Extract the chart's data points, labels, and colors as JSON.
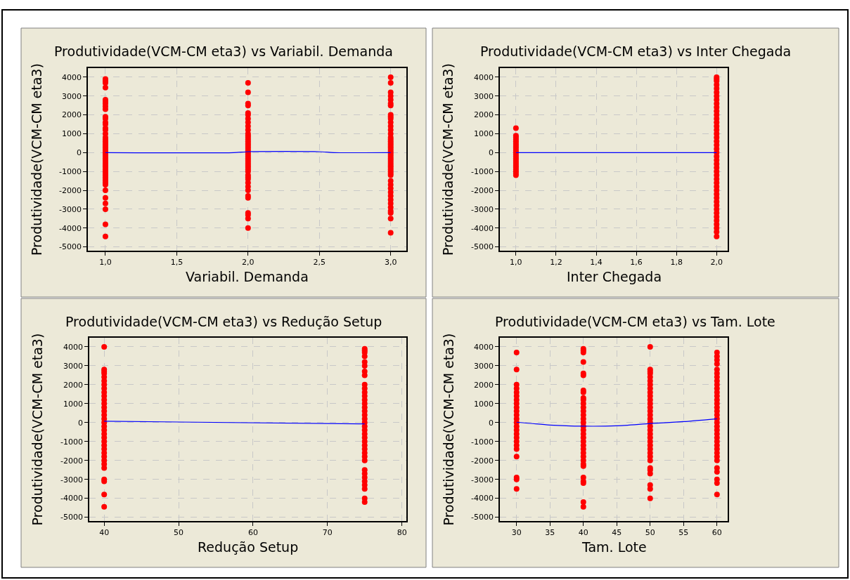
{
  "chart_data": [
    {
      "type": "scatter",
      "title": "Produtividade(VCM-CM eta3) vs Variabil. Demanda",
      "xlabel": "Variabil. Demanda",
      "ylabel": "Produtividade(VCM-CM eta3)",
      "grid": true,
      "xlim": [
        0.877,
        3.11
      ],
      "xticks": [
        {
          "value": 1.0,
          "label": "1,0"
        },
        {
          "value": 1.5,
          "label": "1,5"
        },
        {
          "value": 2.0,
          "label": "2,0"
        },
        {
          "value": 2.5,
          "label": "2,5"
        },
        {
          "value": 3.0,
          "label": "3,0"
        }
      ],
      "ylim": [
        -5200,
        4480
      ],
      "yticks": [
        -5000,
        -4000,
        -3000,
        -2000,
        -1000,
        0,
        1000,
        2000,
        3000,
        4000
      ],
      "series": [
        {
          "marker": "circle",
          "color": "#ff0000",
          "x": [
            1,
            1,
            1,
            1,
            1,
            1,
            1,
            1,
            1,
            1,
            1,
            1,
            1,
            1,
            1,
            1,
            1,
            1,
            1,
            1,
            1,
            1,
            1,
            1,
            1,
            1,
            1,
            1,
            1,
            1,
            1,
            1,
            1,
            1,
            1,
            1,
            1,
            1,
            1,
            1,
            1,
            1,
            1,
            1,
            1,
            1,
            1,
            1,
            2,
            2,
            2,
            2,
            2,
            2,
            2,
            2,
            2,
            2,
            2,
            2,
            2,
            2,
            2,
            2,
            2,
            2,
            2,
            2,
            2,
            2,
            2,
            2,
            2,
            2,
            2,
            2,
            2,
            2,
            2,
            2,
            2,
            2,
            2,
            2,
            2,
            2,
            2,
            2,
            2,
            2,
            2,
            3,
            3,
            3,
            3,
            3,
            3,
            3,
            3,
            3,
            3,
            3,
            3,
            3,
            3,
            3,
            3,
            3,
            3,
            3,
            3,
            3,
            3,
            3,
            3,
            3,
            3,
            3,
            3,
            3,
            3,
            3,
            3,
            3,
            3,
            3,
            3,
            3,
            3,
            3,
            3,
            3,
            3,
            3,
            3,
            3,
            3,
            3
          ],
          "values": [
            3900,
            3800,
            3700,
            3450,
            2800,
            2700,
            2600,
            2450,
            2300,
            1900,
            1800,
            1600,
            1500,
            1300,
            1200,
            1000,
            800,
            700,
            600,
            500,
            400,
            300,
            200,
            100,
            0,
            -100,
            -200,
            -300,
            -400,
            -500,
            -600,
            -700,
            -800,
            -900,
            -1000,
            -1100,
            -1200,
            -1300,
            -1400,
            -1500,
            -1600,
            -1700,
            -2000,
            -2400,
            -2700,
            -3000,
            -3800,
            -4450,
            3700,
            3200,
            2600,
            2500,
            2100,
            2000,
            1800,
            1600,
            1400,
            1200,
            1000,
            900,
            800,
            700,
            600,
            500,
            400,
            300,
            200,
            100,
            0,
            -100,
            -200,
            -300,
            -400,
            -500,
            -600,
            -700,
            -800,
            -900,
            -1000,
            -1200,
            -1300,
            -1400,
            -1600,
            -1800,
            -2000,
            -2300,
            -2400,
            -3200,
            -3300,
            -3500,
            -4000,
            4000,
            3700,
            3200,
            3000,
            2800,
            2600,
            2500,
            2000,
            1900,
            1800,
            1600,
            1400,
            1200,
            1000,
            800,
            700,
            600,
            500,
            400,
            300,
            200,
            100,
            0,
            -100,
            -200,
            -300,
            -400,
            -500,
            -600,
            -700,
            -800,
            -900,
            -1000,
            -1100,
            -1200,
            -1500,
            -1700,
            -1900,
            -2100,
            -2300,
            -2500,
            -2700,
            -2900,
            -3100,
            -3200,
            -3500,
            -4250
          ]
        },
        {
          "type": "line",
          "color": "#0000ff",
          "x": [
            1.0,
            1.9,
            2.0,
            2.5,
            2.6,
            3.0
          ],
          "values": [
            0,
            0,
            50,
            50,
            0,
            0
          ]
        }
      ]
    },
    {
      "type": "scatter",
      "title": "Produtividade(VCM-CM eta3) vs Inter Chegada",
      "xlabel": "Inter Chegada",
      "ylabel": "Produtividade(VCM-CM eta3)",
      "grid": true,
      "xlim": [
        0.92,
        2.055
      ],
      "xticks": [
        {
          "value": 1.0,
          "label": "1,0"
        },
        {
          "value": 1.2,
          "label": "1,2"
        },
        {
          "value": 1.4,
          "label": "1,4"
        },
        {
          "value": 1.6,
          "label": "1,6"
        },
        {
          "value": 1.8,
          "label": "1,8"
        },
        {
          "value": 2.0,
          "label": "2,0"
        }
      ],
      "ylim": [
        -5200,
        4480
      ],
      "yticks": [
        -5000,
        -4000,
        -3000,
        -2000,
        -1000,
        0,
        1000,
        2000,
        3000,
        4000
      ],
      "series": [
        {
          "marker": "circle",
          "color": "#ff0000",
          "x": [
            1,
            1,
            1,
            1,
            1,
            1,
            1,
            1,
            1,
            1,
            1,
            1,
            1,
            1,
            1,
            1,
            1,
            1,
            1,
            1,
            1,
            1,
            1,
            2,
            2,
            2,
            2,
            2,
            2,
            2,
            2,
            2,
            2,
            2,
            2,
            2,
            2,
            2,
            2,
            2,
            2,
            2,
            2,
            2,
            2,
            2,
            2,
            2,
            2,
            2,
            2,
            2,
            2,
            2,
            2,
            2,
            2,
            2,
            2,
            2,
            2,
            2,
            2,
            2,
            2,
            2,
            2
          ],
          "values": [
            1300,
            900,
            800,
            700,
            600,
            500,
            400,
            300,
            200,
            100,
            0,
            -100,
            -200,
            -300,
            -400,
            -500,
            -600,
            -700,
            -800,
            -900,
            -1000,
            -1100,
            -1200,
            4000,
            3900,
            3800,
            3600,
            3400,
            3200,
            3000,
            2800,
            2600,
            2400,
            2200,
            2000,
            1800,
            1600,
            1400,
            1200,
            1000,
            800,
            600,
            400,
            200,
            0,
            -200,
            -400,
            -600,
            -800,
            -1000,
            -1200,
            -1400,
            -1600,
            -1800,
            -2000,
            -2200,
            -2400,
            -2600,
            -2800,
            -3000,
            -3200,
            -3400,
            -3600,
            -3800,
            -4000,
            -4200,
            -4450
          ]
        },
        {
          "type": "line",
          "color": "#0000ff",
          "x": [
            1.0,
            2.0
          ],
          "values": [
            0,
            0
          ]
        }
      ]
    },
    {
      "type": "scatter",
      "title": "Produtividade(VCM-CM eta3) vs Redução Setup",
      "xlabel": "Redução Setup",
      "ylabel": "Produtividade(VCM-CM eta3)",
      "grid": true,
      "xlim": [
        38,
        80.6
      ],
      "xticks": [
        40,
        50,
        60,
        70,
        80
      ],
      "ylim": [
        -5200,
        4480
      ],
      "yticks": [
        -5000,
        -4000,
        -3000,
        -2000,
        -1000,
        0,
        1000,
        2000,
        3000,
        4000
      ],
      "series": [
        {
          "marker": "circle",
          "color": "#ff0000",
          "x": [
            40,
            40,
            40,
            40,
            40,
            40,
            40,
            40,
            40,
            40,
            40,
            40,
            40,
            40,
            40,
            40,
            40,
            40,
            40,
            40,
            40,
            40,
            40,
            40,
            40,
            40,
            40,
            40,
            40,
            40,
            40,
            40,
            40,
            75,
            75,
            75,
            75,
            75,
            75,
            75,
            75,
            75,
            75,
            75,
            75,
            75,
            75,
            75,
            75,
            75,
            75,
            75,
            75,
            75,
            75,
            75,
            75,
            75,
            75,
            75,
            75,
            75,
            75,
            75,
            75,
            75,
            75,
            75,
            75,
            75
          ],
          "values": [
            4000,
            2800,
            2700,
            2600,
            2400,
            2200,
            2000,
            1800,
            1600,
            1400,
            1200,
            1000,
            800,
            600,
            400,
            200,
            0,
            -200,
            -400,
            -600,
            -800,
            -1000,
            -1200,
            -1400,
            -1600,
            -1800,
            -2000,
            -2200,
            -2400,
            -3000,
            -3100,
            -3800,
            -4450,
            3900,
            3800,
            3700,
            3500,
            3200,
            3000,
            2700,
            2500,
            2000,
            1800,
            1600,
            1400,
            1200,
            1000,
            800,
            600,
            400,
            200,
            0,
            -200,
            -400,
            -600,
            -800,
            -1000,
            -1200,
            -1400,
            -1600,
            -1800,
            -2000,
            -2500,
            -2700,
            -2900,
            -3100,
            -3300,
            -3500,
            -4000,
            -4200
          ]
        },
        {
          "type": "line",
          "color": "#0000ff",
          "x": [
            40,
            75
          ],
          "values": [
            70,
            -70
          ]
        }
      ]
    },
    {
      "type": "scatter",
      "title": "Produtividade(VCM-CM eta3) vs Tam. Lote",
      "xlabel": "Tam. Lote",
      "ylabel": "Produtividade(VCM-CM eta3)",
      "grid": true,
      "xlim": [
        27.5,
        61.6
      ],
      "xticks": [
        30,
        35,
        40,
        45,
        50,
        55,
        60
      ],
      "ylim": [
        -5200,
        4480
      ],
      "yticks": [
        -5000,
        -4000,
        -3000,
        -2000,
        -1000,
        0,
        1000,
        2000,
        3000,
        4000
      ],
      "series": [
        {
          "marker": "circle",
          "color": "#ff0000",
          "x": [
            30,
            30,
            30,
            30,
            30,
            30,
            30,
            30,
            30,
            30,
            30,
            30,
            30,
            30,
            30,
            30,
            30,
            30,
            30,
            30,
            30,
            30,
            30,
            30,
            40,
            40,
            40,
            40,
            40,
            40,
            40,
            40,
            40,
            40,
            40,
            40,
            40,
            40,
            40,
            40,
            40,
            40,
            40,
            40,
            40,
            40,
            40,
            40,
            40,
            40,
            40,
            40,
            40,
            40,
            40,
            40,
            40,
            50,
            50,
            50,
            50,
            50,
            50,
            50,
            50,
            50,
            50,
            50,
            50,
            50,
            50,
            50,
            50,
            50,
            50,
            50,
            50,
            50,
            50,
            50,
            50,
            50,
            50,
            50,
            50,
            50,
            50,
            50,
            50,
            50,
            60,
            60,
            60,
            60,
            60,
            60,
            60,
            60,
            60,
            60,
            60,
            60,
            60,
            60,
            60,
            60,
            60,
            60,
            60,
            60,
            60,
            60,
            60,
            60,
            60,
            60,
            60,
            60,
            60,
            60,
            60,
            60,
            60,
            60
          ],
          "values": [
            3700,
            2800,
            2000,
            1800,
            1600,
            1400,
            1200,
            1000,
            800,
            600,
            400,
            200,
            0,
            -200,
            -400,
            -600,
            -800,
            -1000,
            -1200,
            -1400,
            -1800,
            -2900,
            -3000,
            -3500,
            3900,
            3800,
            3700,
            3200,
            2600,
            2500,
            1700,
            1600,
            1300,
            1200,
            1000,
            800,
            600,
            400,
            200,
            0,
            -200,
            -400,
            -600,
            -800,
            -1000,
            -1200,
            -1400,
            -1600,
            -1800,
            -2000,
            -2200,
            -2300,
            -2900,
            -3100,
            -3200,
            -4200,
            -4450,
            4000,
            2800,
            2700,
            2600,
            2400,
            2200,
            2000,
            1800,
            1600,
            1400,
            1200,
            1000,
            800,
            600,
            400,
            200,
            0,
            -200,
            -400,
            -600,
            -800,
            -1000,
            -1200,
            -1400,
            -1600,
            -1800,
            -2000,
            -2400,
            -2500,
            -2700,
            -3300,
            -3500,
            -4000,
            3700,
            3500,
            3300,
            3100,
            2800,
            2600,
            2400,
            2200,
            2000,
            1800,
            1600,
            1400,
            1200,
            1000,
            800,
            600,
            400,
            200,
            0,
            -200,
            -400,
            -600,
            -800,
            -1000,
            -1200,
            -1400,
            -1600,
            -1800,
            -2000,
            -2400,
            -2600,
            -3000,
            -3200,
            -3800
          ]
        },
        {
          "type": "line",
          "color": "#0000ff",
          "x": [
            30,
            35,
            40,
            45,
            50,
            55,
            60
          ],
          "values": [
            20,
            -130,
            -190,
            -170,
            -50,
            50,
            200
          ]
        }
      ]
    }
  ]
}
